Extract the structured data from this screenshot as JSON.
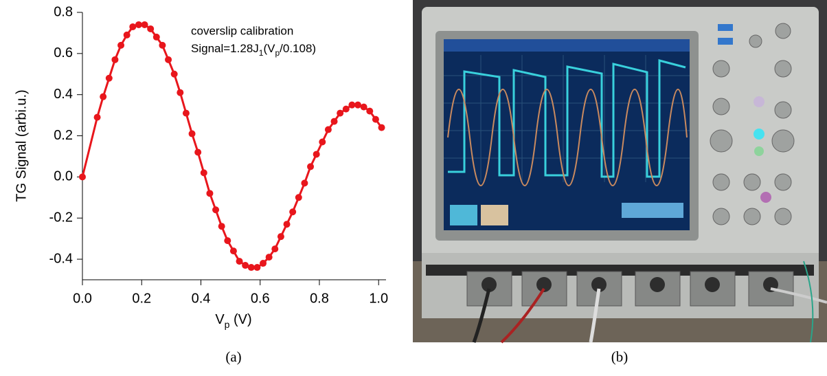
{
  "chart_data": {
    "type": "scatter-line",
    "annotation": [
      "coverslip calibration",
      "Signal=1.28J",
      "1",
      "(V",
      "p",
      "/0.108)"
    ],
    "xlabel": [
      "V",
      "p",
      " (V)"
    ],
    "ylabel": "TG Signal (arbi.u.)",
    "xlim": [
      0,
      1.025
    ],
    "ylim": [
      -0.5,
      0.8
    ],
    "xticks": [
      {
        "value": 0,
        "label": "0.0"
      },
      0.2,
      0.4,
      0.6,
      0.8,
      {
        "value": 1,
        "label": "1.0"
      }
    ],
    "yticks": [
      -0.4,
      -0.2,
      {
        "value": 0,
        "label": "0.0"
      },
      0.2,
      0.4,
      0.6,
      0.8
    ],
    "series": [
      {
        "color": "#e8161c",
        "x": [
          0,
          0.05,
          0.07,
          0.09,
          0.11,
          0.13,
          0.15,
          0.17,
          0.19,
          0.21,
          0.23,
          0.25,
          0.27,
          0.29,
          0.31,
          0.33,
          0.35,
          0.37,
          0.39,
          0.41,
          0.43,
          0.45,
          0.47,
          0.49,
          0.51,
          0.53,
          0.55,
          0.57,
          0.59,
          0.61,
          0.63,
          0.65,
          0.67,
          0.69,
          0.71,
          0.73,
          0.75,
          0.77,
          0.79,
          0.81,
          0.83,
          0.85,
          0.87,
          0.89,
          0.91,
          0.93,
          0.95,
          0.97,
          0.99,
          1.01
        ],
        "values": [
          0,
          0.29,
          0.39,
          0.48,
          0.57,
          0.64,
          0.69,
          0.73,
          0.74,
          0.74,
          0.72,
          0.68,
          0.64,
          0.57,
          0.5,
          0.41,
          0.31,
          0.21,
          0.12,
          0.02,
          -0.08,
          -0.16,
          -0.24,
          -0.31,
          -0.36,
          -0.41,
          -0.43,
          -0.44,
          -0.44,
          -0.42,
          -0.39,
          -0.35,
          -0.29,
          -0.23,
          -0.17,
          -0.1,
          -0.03,
          0.05,
          0.11,
          0.17,
          0.23,
          0.27,
          0.31,
          0.33,
          0.35,
          0.35,
          0.34,
          0.32,
          0.28,
          0.24
        ]
      }
    ]
  },
  "captions": [
    "(a)",
    "(b)"
  ]
}
